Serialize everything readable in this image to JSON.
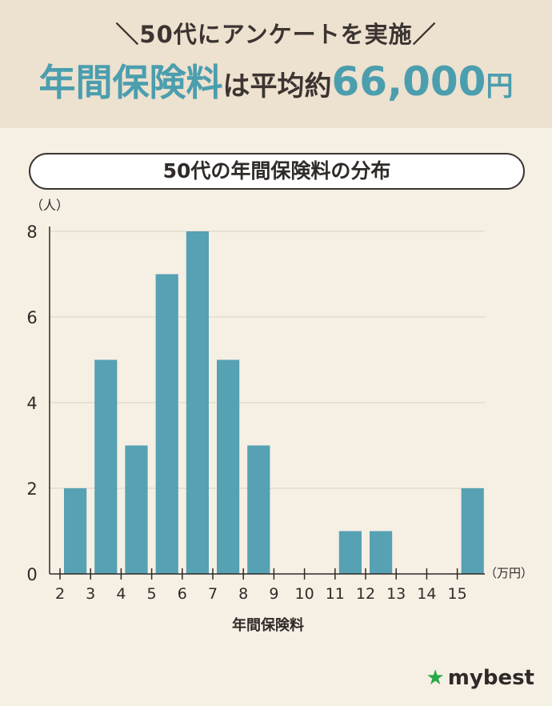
{
  "header": {
    "survey_text": "＼50代にアンケートを実施／",
    "headline_part1": "年間保険料",
    "headline_part2": "は平均約",
    "headline_amount": "66,000",
    "headline_unit": "円"
  },
  "chart_title": "50代の年間保険料の分布",
  "chart_data": {
    "type": "bar",
    "title": "50代の年間保険料の分布",
    "xlabel": "年間保険料",
    "ylabel": "（人）",
    "x_unit": "（万円）",
    "x_ticks": [
      "2",
      "3",
      "4",
      "5",
      "6",
      "7",
      "8",
      "9",
      "10",
      "11",
      "12",
      "13",
      "14",
      "15"
    ],
    "y_ticks": [
      "0",
      "2",
      "4",
      "6",
      "8"
    ],
    "ylim": [
      0,
      8
    ],
    "xlim": [
      2,
      16
    ],
    "bars": [
      {
        "from": 2,
        "to": 3,
        "value": 2
      },
      {
        "from": 3,
        "to": 4,
        "value": 5
      },
      {
        "from": 4,
        "to": 5,
        "value": 3
      },
      {
        "from": 5,
        "to": 6,
        "value": 7
      },
      {
        "from": 6,
        "to": 7,
        "value": 8
      },
      {
        "from": 7,
        "to": 8,
        "value": 5
      },
      {
        "from": 8,
        "to": 9,
        "value": 3
      },
      {
        "from": 11,
        "to": 12,
        "value": 1
      },
      {
        "from": 12,
        "to": 13,
        "value": 1
      },
      {
        "from": 15,
        "to": 16,
        "value": 2
      }
    ],
    "grid": true,
    "bar_color": "#56a1b3"
  },
  "brand": {
    "star": "★",
    "name": "mybest",
    "star_color": "#29a84a"
  }
}
